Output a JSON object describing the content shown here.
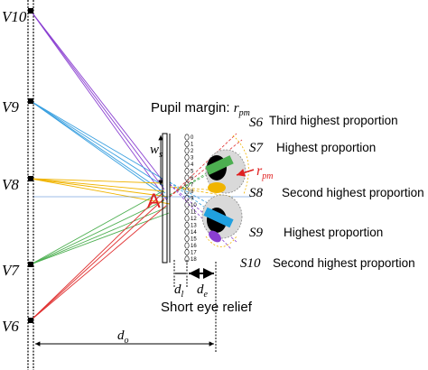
{
  "viewpoints": [
    {
      "label": "V10",
      "color": "#8a3fd1"
    },
    {
      "label": "V9",
      "color": "#3aa0e0"
    },
    {
      "label": "V8",
      "color": "#f0b400"
    },
    {
      "label": "V7",
      "color": "#4caf50"
    },
    {
      "label": "V6",
      "color": "#e03030"
    }
  ],
  "pupil_margin": {
    "text": "Pupil margin: ",
    "symbol": "r",
    "subscript": "pm"
  },
  "sub_viewpoints": [
    {
      "label": "S6",
      "proportion": "Third highest proportion"
    },
    {
      "label": "S7",
      "proportion": "Highest proportion"
    },
    {
      "label": "S8",
      "proportion": "Second highest proportion"
    },
    {
      "label": "S9",
      "proportion": "Highest proportion"
    },
    {
      "label": "S10",
      "proportion": "Second highest proportion"
    }
  ],
  "point_label": "A",
  "rpm_label": {
    "symbol": "r",
    "subscript": "pm"
  },
  "ws_label": {
    "symbol": "w",
    "subscript": "s"
  },
  "dl_label": {
    "symbol": "d",
    "subscript": "l"
  },
  "de_label": {
    "symbol": "d",
    "subscript": "e"
  },
  "do_label": {
    "symbol": "d",
    "subscript": "o"
  },
  "short_eye_relief": "Short eye relief",
  "lens_numbers": [
    "0",
    "1",
    "2",
    "3",
    "4",
    "5",
    "6",
    "7",
    "8",
    "9",
    "10",
    "11",
    "12",
    "13",
    "14",
    "15",
    "16",
    "17",
    "18"
  ],
  "colors": {
    "red": "#e02020",
    "blue": "#20a0e0",
    "green": "#4caf50",
    "yellow": "#f0b400",
    "purple": "#8a3fd1"
  }
}
